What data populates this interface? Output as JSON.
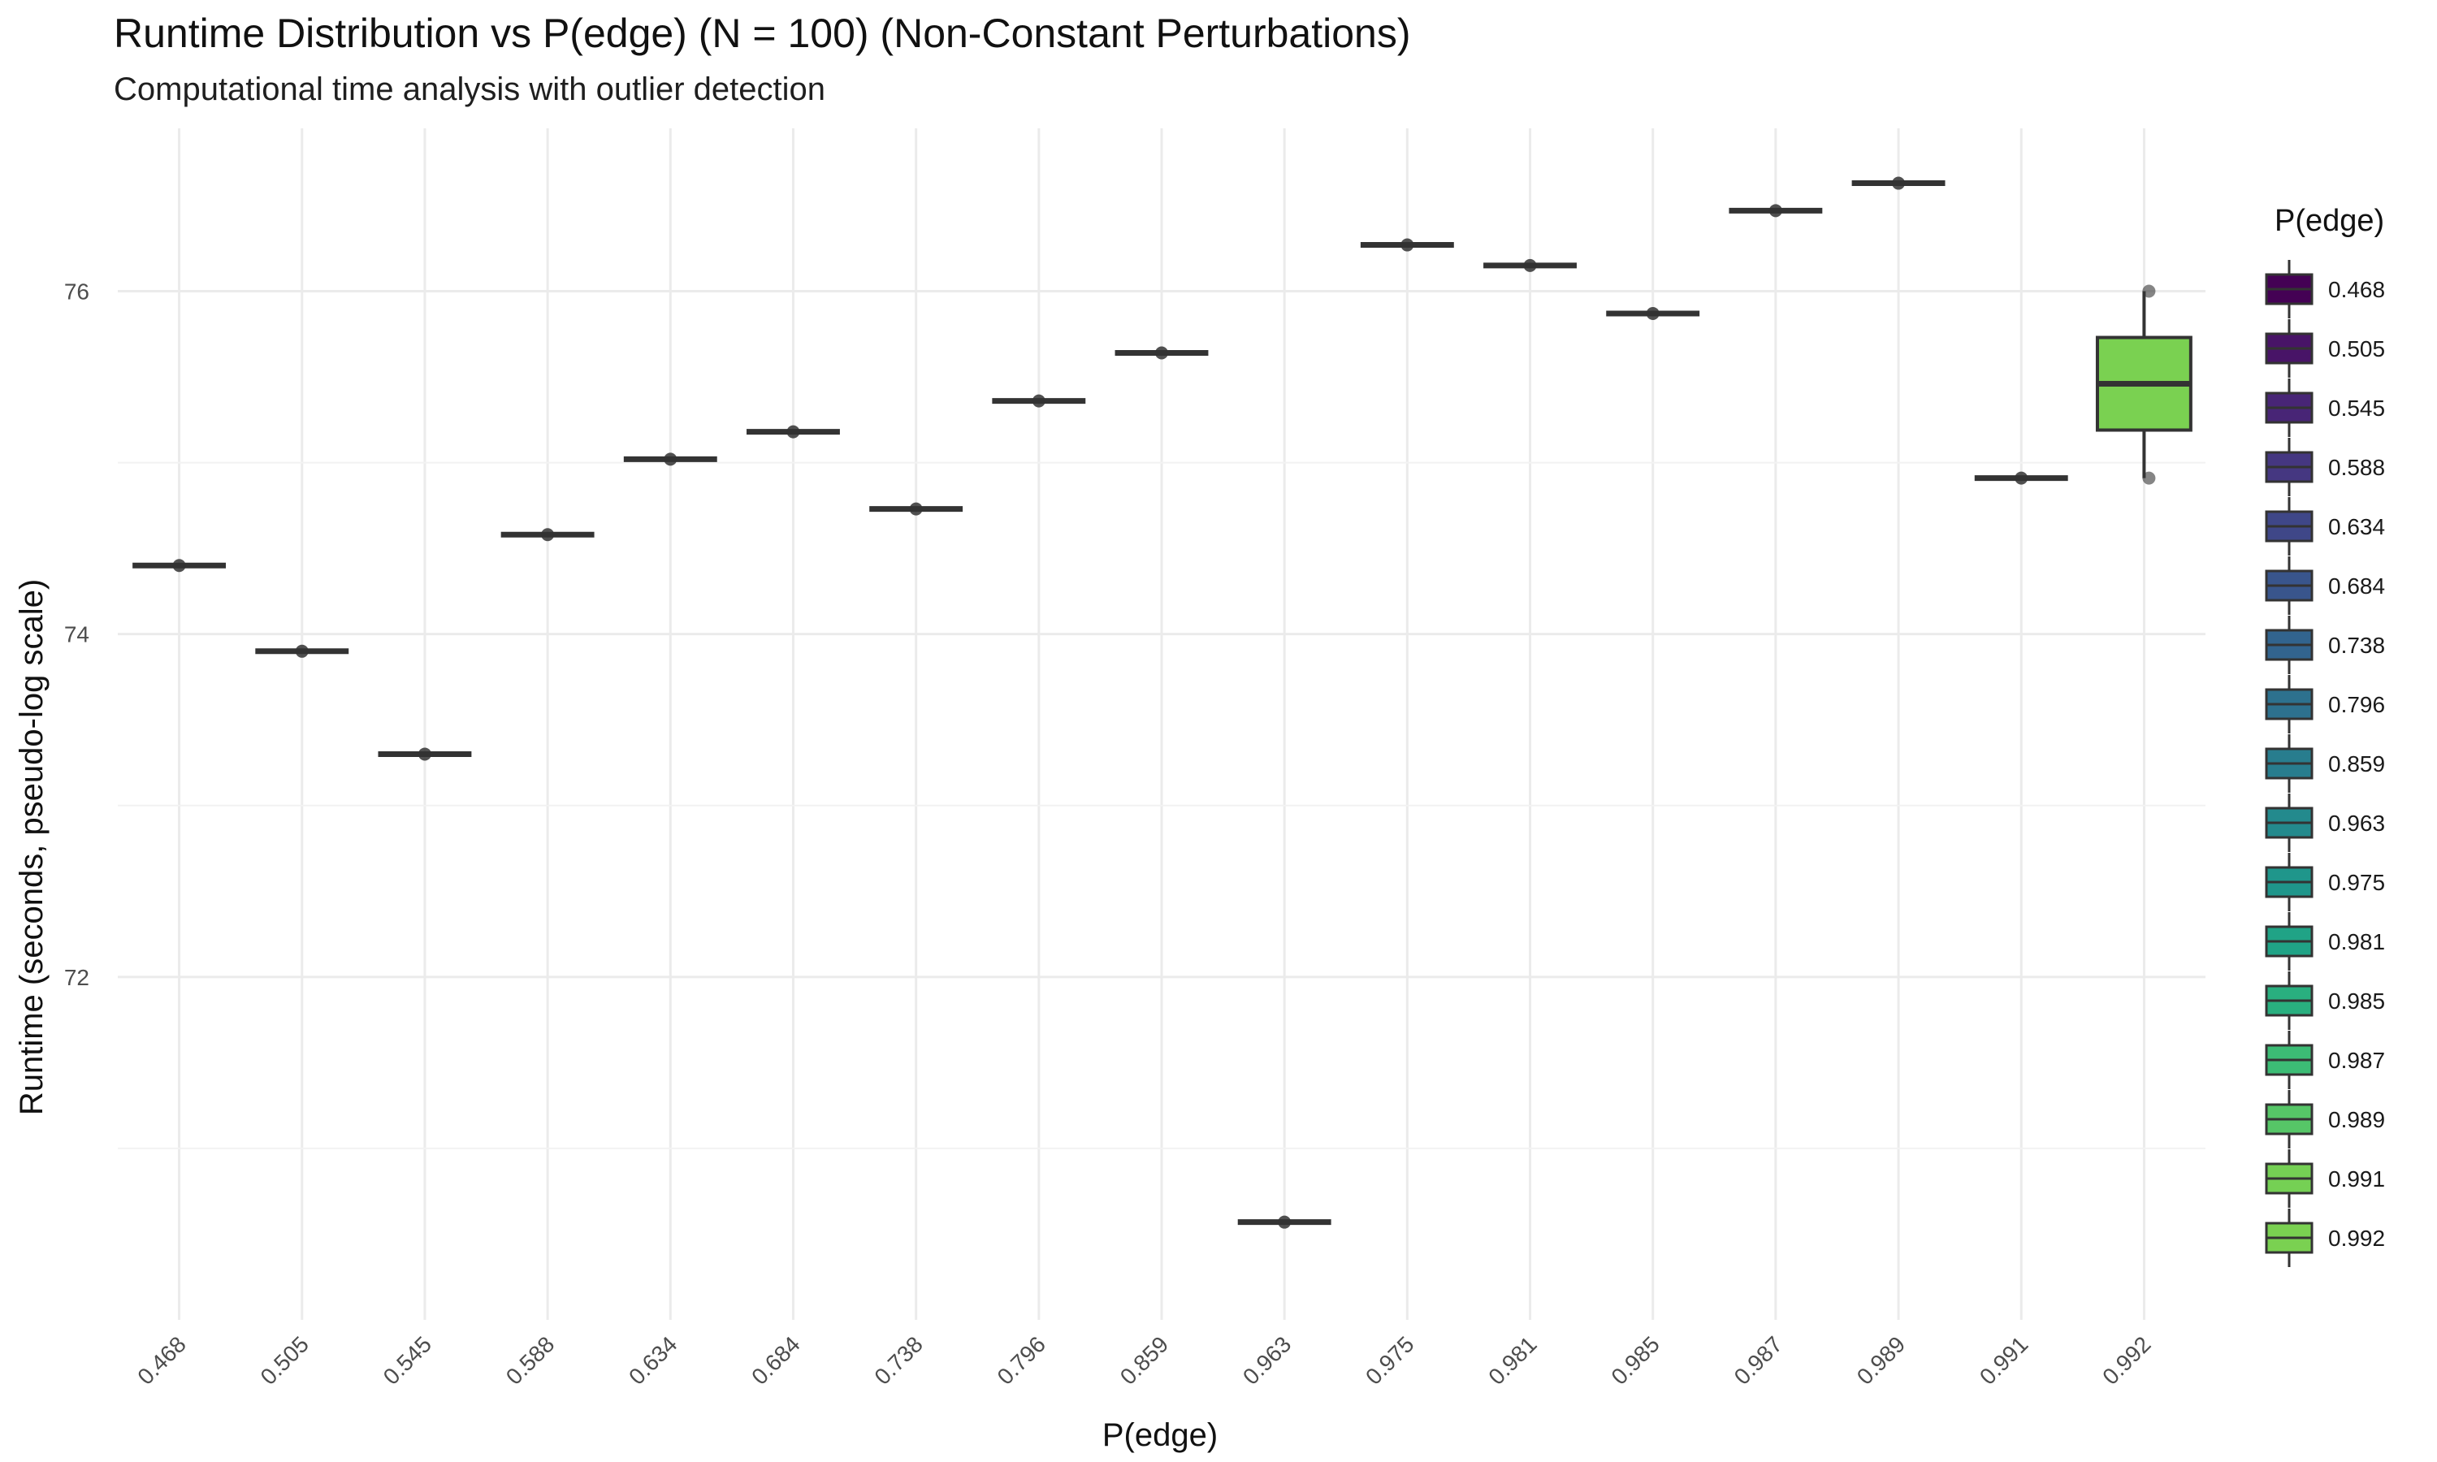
{
  "chart_data": {
    "type": "box",
    "title": "Runtime Distribution vs P(edge) (N = 100) (Non-Constant Perturbations)",
    "subtitle": "Computational time analysis with outlier detection",
    "xlabel": "P(edge)",
    "ylabel": "Runtime (seconds, pseudo-log scale)",
    "ylim": [
      70.0,
      76.95
    ],
    "y_ticks": [
      72,
      74,
      76
    ],
    "y_tick_labels": [
      "72",
      "74",
      "76"
    ],
    "categories": [
      "0.468",
      "0.505",
      "0.545",
      "0.588",
      "0.634",
      "0.684",
      "0.738",
      "0.796",
      "0.859",
      "0.963",
      "0.975",
      "0.981",
      "0.985",
      "0.987",
      "0.989",
      "0.991",
      "0.992"
    ],
    "boxes": [
      {
        "label": "0.468",
        "min": 74.4,
        "q1": 74.4,
        "median": 74.4,
        "q3": 74.4,
        "max": 74.4,
        "points": [
          74.4
        ]
      },
      {
        "label": "0.505",
        "min": 73.9,
        "q1": 73.9,
        "median": 73.9,
        "q3": 73.9,
        "max": 73.9,
        "points": [
          73.9
        ]
      },
      {
        "label": "0.545",
        "min": 73.3,
        "q1": 73.3,
        "median": 73.3,
        "q3": 73.3,
        "max": 73.3,
        "points": [
          73.3
        ]
      },
      {
        "label": "0.588",
        "min": 74.58,
        "q1": 74.58,
        "median": 74.58,
        "q3": 74.58,
        "max": 74.58,
        "points": [
          74.58
        ]
      },
      {
        "label": "0.634",
        "min": 75.02,
        "q1": 75.02,
        "median": 75.02,
        "q3": 75.02,
        "max": 75.02,
        "points": [
          75.02
        ]
      },
      {
        "label": "0.684",
        "min": 75.18,
        "q1": 75.18,
        "median": 75.18,
        "q3": 75.18,
        "max": 75.18,
        "points": [
          75.18
        ]
      },
      {
        "label": "0.738",
        "min": 74.73,
        "q1": 74.73,
        "median": 74.73,
        "q3": 74.73,
        "max": 74.73,
        "points": [
          74.73
        ]
      },
      {
        "label": "0.796",
        "min": 75.36,
        "q1": 75.36,
        "median": 75.36,
        "q3": 75.36,
        "max": 75.36,
        "points": [
          75.36
        ]
      },
      {
        "label": "0.859",
        "min": 75.64,
        "q1": 75.64,
        "median": 75.64,
        "q3": 75.64,
        "max": 75.64,
        "points": [
          75.64
        ]
      },
      {
        "label": "0.963",
        "min": 70.57,
        "q1": 70.57,
        "median": 70.57,
        "q3": 70.57,
        "max": 70.57,
        "points": [
          70.57
        ]
      },
      {
        "label": "0.975",
        "min": 76.27,
        "q1": 76.27,
        "median": 76.27,
        "q3": 76.27,
        "max": 76.27,
        "points": [
          76.27
        ]
      },
      {
        "label": "0.981",
        "min": 76.15,
        "q1": 76.15,
        "median": 76.15,
        "q3": 76.15,
        "max": 76.15,
        "points": [
          76.15
        ]
      },
      {
        "label": "0.985",
        "min": 75.87,
        "q1": 75.87,
        "median": 75.87,
        "q3": 75.87,
        "max": 75.87,
        "points": [
          75.87
        ]
      },
      {
        "label": "0.987",
        "min": 76.47,
        "q1": 76.47,
        "median": 76.47,
        "q3": 76.47,
        "max": 76.47,
        "points": [
          76.47
        ]
      },
      {
        "label": "0.989",
        "min": 76.63,
        "q1": 76.63,
        "median": 76.63,
        "q3": 76.63,
        "max": 76.63,
        "points": [
          76.63
        ]
      },
      {
        "label": "0.991",
        "min": 74.91,
        "q1": 74.91,
        "median": 74.91,
        "q3": 74.91,
        "max": 74.91,
        "points": [
          74.91
        ]
      },
      {
        "label": "0.992",
        "min": 74.91,
        "q1": 75.19,
        "median": 75.46,
        "q3": 75.73,
        "max": 76.0,
        "points": [
          76.0,
          74.91
        ]
      }
    ],
    "legend": {
      "title": "P(edge)",
      "position": "right",
      "entries": [
        "0.468",
        "0.505",
        "0.545",
        "0.588",
        "0.634",
        "0.684",
        "0.738",
        "0.796",
        "0.859",
        "0.963",
        "0.975",
        "0.981",
        "0.985",
        "0.987",
        "0.989",
        "0.991",
        "0.992"
      ]
    },
    "colors": [
      "#440154",
      "#481467",
      "#482576",
      "#453781",
      "#3f4788",
      "#39558c",
      "#32648e",
      "#2d718e",
      "#287d8e",
      "#238a8d",
      "#1f968b",
      "#20a386",
      "#29af7f",
      "#3cbc75",
      "#56c667",
      "#75d054",
      "#7ad151"
    ],
    "grid": true,
    "theme": "minimal"
  }
}
